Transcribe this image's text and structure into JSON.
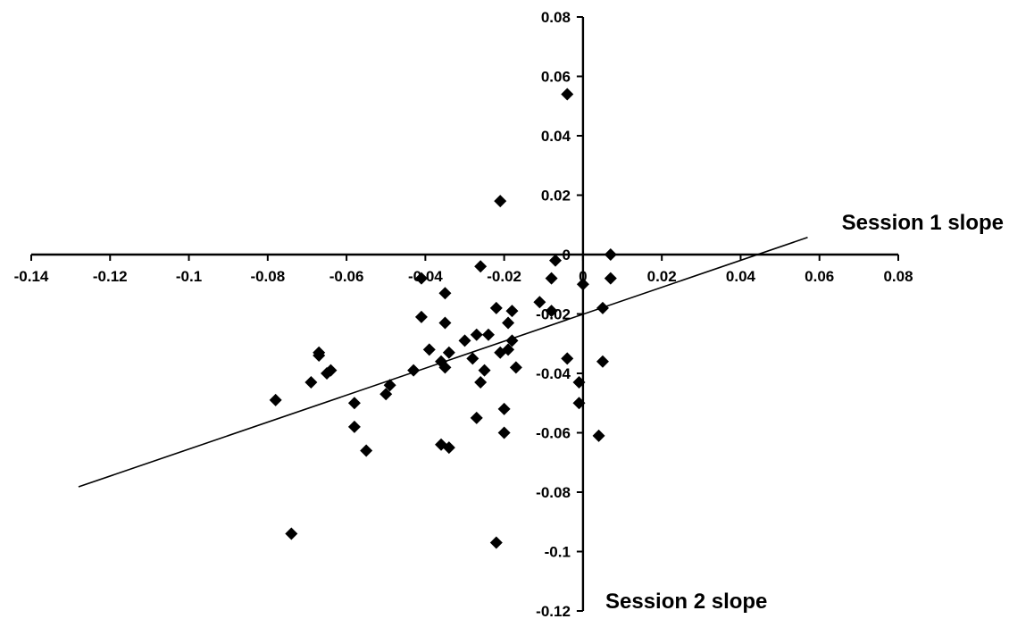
{
  "chart_data": {
    "type": "scatter",
    "title": "",
    "xlabel": "Session 1 slope",
    "ylabel": "Session 2 slope",
    "xlim": [
      -0.14,
      0.08
    ],
    "ylim": [
      -0.12,
      0.08
    ],
    "x_ticks": [
      "-0.14",
      "-0.12",
      "-0.1",
      "-0.08",
      "-0.06",
      "-0.04",
      "-0.02",
      "0",
      "0.02",
      "0.04",
      "0.06",
      "0.08"
    ],
    "y_ticks": [
      "0.08",
      "0.06",
      "0.04",
      "0.02",
      "0",
      "-0.02",
      "-0.04",
      "-0.06",
      "-0.08",
      "-0.1",
      "-0.12"
    ],
    "grid": false,
    "legend": "none",
    "marker": "diamond",
    "marker_color": "#000000",
    "series": [
      {
        "points": [
          [
            -0.004,
            0.054
          ],
          [
            -0.021,
            0.018
          ],
          [
            0.007,
            0.0
          ],
          [
            -0.007,
            -0.002
          ],
          [
            -0.026,
            -0.004
          ],
          [
            -0.041,
            -0.008
          ],
          [
            -0.008,
            -0.008
          ],
          [
            0.007,
            -0.008
          ],
          [
            0.0,
            -0.01
          ],
          [
            -0.035,
            -0.013
          ],
          [
            -0.011,
            -0.016
          ],
          [
            -0.022,
            -0.018
          ],
          [
            -0.018,
            -0.019
          ],
          [
            -0.008,
            -0.019
          ],
          [
            0.005,
            -0.018
          ],
          [
            -0.041,
            -0.021
          ],
          [
            -0.035,
            -0.023
          ],
          [
            -0.019,
            -0.023
          ],
          [
            -0.024,
            -0.027
          ],
          [
            -0.027,
            -0.027
          ],
          [
            -0.03,
            -0.029
          ],
          [
            -0.018,
            -0.029
          ],
          [
            -0.039,
            -0.032
          ],
          [
            -0.019,
            -0.032
          ],
          [
            -0.021,
            -0.033
          ],
          [
            -0.034,
            -0.033
          ],
          [
            -0.067,
            -0.033
          ],
          [
            -0.067,
            -0.034
          ],
          [
            -0.028,
            -0.035
          ],
          [
            -0.004,
            -0.035
          ],
          [
            -0.036,
            -0.036
          ],
          [
            0.005,
            -0.036
          ],
          [
            -0.035,
            -0.038
          ],
          [
            -0.017,
            -0.038
          ],
          [
            -0.064,
            -0.039
          ],
          [
            -0.065,
            -0.04
          ],
          [
            -0.043,
            -0.039
          ],
          [
            -0.025,
            -0.039
          ],
          [
            -0.069,
            -0.043
          ],
          [
            -0.026,
            -0.043
          ],
          [
            -0.001,
            -0.043
          ],
          [
            -0.049,
            -0.044
          ],
          [
            -0.05,
            -0.047
          ],
          [
            -0.078,
            -0.049
          ],
          [
            -0.058,
            -0.05
          ],
          [
            -0.001,
            -0.05
          ],
          [
            -0.02,
            -0.052
          ],
          [
            -0.027,
            -0.055
          ],
          [
            -0.058,
            -0.058
          ],
          [
            -0.02,
            -0.06
          ],
          [
            0.004,
            -0.061
          ],
          [
            -0.036,
            -0.064
          ],
          [
            -0.034,
            -0.065
          ],
          [
            -0.055,
            -0.066
          ],
          [
            -0.074,
            -0.094
          ],
          [
            -0.022,
            -0.097
          ]
        ]
      }
    ],
    "trendline": {
      "type": "linear",
      "x_range": [
        -0.128,
        0.057
      ],
      "slope": 0.454,
      "intercept": -0.0201
    }
  }
}
